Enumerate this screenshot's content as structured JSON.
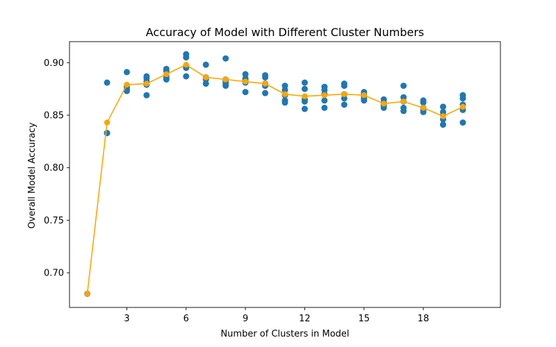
{
  "chart_data": {
    "type": "scatter",
    "title": "Accuracy of Model with Different Cluster Numbers",
    "xlabel": "Number of Clusters in Model",
    "ylabel": "Overall Model Accuracy",
    "xlim": [
      0.1,
      21.9
    ],
    "ylim": [
      0.667,
      0.92
    ],
    "xticks": [
      3,
      6,
      9,
      12,
      15,
      18
    ],
    "yticks": [
      0.7,
      0.75,
      0.8,
      0.85,
      0.9
    ],
    "ytick_labels": [
      "0.70",
      "0.75",
      "0.80",
      "0.85",
      "0.90"
    ],
    "grid": false,
    "series": [
      {
        "mark": "scatter",
        "color": "#1f77b4",
        "points": [
          [
            1,
            0.68
          ],
          [
            2,
            0.881
          ],
          [
            2,
            0.833
          ],
          [
            2,
            0.833
          ],
          [
            3,
            0.891
          ],
          [
            3,
            0.877
          ],
          [
            3,
            0.875
          ],
          [
            3,
            0.873
          ],
          [
            4,
            0.887
          ],
          [
            4,
            0.885
          ],
          [
            4,
            0.882
          ],
          [
            4,
            0.879
          ],
          [
            4,
            0.869
          ],
          [
            5,
            0.894
          ],
          [
            5,
            0.892
          ],
          [
            5,
            0.887
          ],
          [
            5,
            0.885
          ],
          [
            5,
            0.884
          ],
          [
            6,
            0.908
          ],
          [
            6,
            0.905
          ],
          [
            6,
            0.897
          ],
          [
            6,
            0.895
          ],
          [
            6,
            0.887
          ],
          [
            7,
            0.898
          ],
          [
            7,
            0.886
          ],
          [
            7,
            0.884
          ],
          [
            7,
            0.88
          ],
          [
            8,
            0.904
          ],
          [
            8,
            0.884
          ],
          [
            8,
            0.882
          ],
          [
            8,
            0.88
          ],
          [
            8,
            0.878
          ],
          [
            9,
            0.889
          ],
          [
            9,
            0.885
          ],
          [
            9,
            0.883
          ],
          [
            9,
            0.881
          ],
          [
            9,
            0.872
          ],
          [
            10,
            0.888
          ],
          [
            10,
            0.886
          ],
          [
            10,
            0.88
          ],
          [
            10,
            0.878
          ],
          [
            10,
            0.871
          ],
          [
            11,
            0.878
          ],
          [
            11,
            0.874
          ],
          [
            11,
            0.869
          ],
          [
            11,
            0.864
          ],
          [
            11,
            0.862
          ],
          [
            12,
            0.881
          ],
          [
            12,
            0.875
          ],
          [
            12,
            0.865
          ],
          [
            12,
            0.863
          ],
          [
            12,
            0.856
          ],
          [
            13,
            0.877
          ],
          [
            13,
            0.874
          ],
          [
            13,
            0.87
          ],
          [
            13,
            0.864
          ],
          [
            13,
            0.857
          ],
          [
            14,
            0.88
          ],
          [
            14,
            0.878
          ],
          [
            14,
            0.87
          ],
          [
            14,
            0.866
          ],
          [
            14,
            0.86
          ],
          [
            15,
            0.872
          ],
          [
            15,
            0.87
          ],
          [
            15,
            0.868
          ],
          [
            15,
            0.866
          ],
          [
            15,
            0.864
          ],
          [
            16,
            0.865
          ],
          [
            16,
            0.862
          ],
          [
            16,
            0.86
          ],
          [
            16,
            0.859
          ],
          [
            16,
            0.857
          ],
          [
            17,
            0.878
          ],
          [
            17,
            0.867
          ],
          [
            17,
            0.863
          ],
          [
            17,
            0.857
          ],
          [
            17,
            0.854
          ],
          [
            18,
            0.864
          ],
          [
            18,
            0.862
          ],
          [
            18,
            0.857
          ],
          [
            18,
            0.855
          ],
          [
            18,
            0.853
          ],
          [
            19,
            0.858
          ],
          [
            19,
            0.853
          ],
          [
            19,
            0.85
          ],
          [
            19,
            0.846
          ],
          [
            19,
            0.841
          ],
          [
            20,
            0.869
          ],
          [
            20,
            0.866
          ],
          [
            20,
            0.86
          ],
          [
            20,
            0.855
          ],
          [
            20,
            0.843
          ]
        ]
      },
      {
        "mark": "line",
        "color": "#ffa500",
        "x": [
          1,
          2,
          3,
          4,
          5,
          6,
          7,
          8,
          9,
          10,
          11,
          12,
          13,
          14,
          15,
          16,
          17,
          18,
          19,
          20
        ],
        "y": [
          0.68,
          0.843,
          0.879,
          0.88,
          0.889,
          0.898,
          0.886,
          0.884,
          0.882,
          0.88,
          0.87,
          0.868,
          0.869,
          0.87,
          0.869,
          0.861,
          0.863,
          0.857,
          0.849,
          0.858
        ]
      }
    ]
  }
}
